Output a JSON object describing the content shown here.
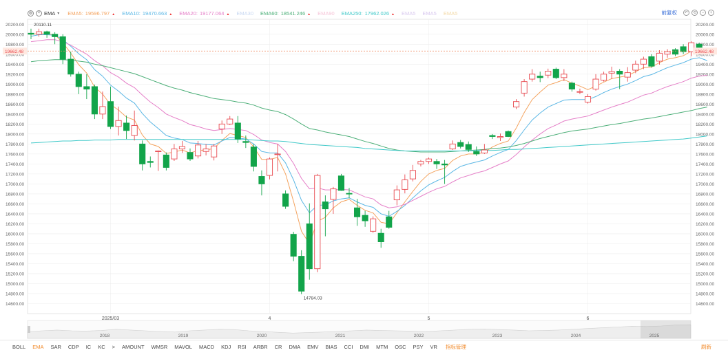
{
  "indicator": {
    "name": "EMA"
  },
  "legend": [
    {
      "label": "EMA5:",
      "value": "19596.797",
      "color": "#f4a460",
      "muted": false
    },
    {
      "label": "EMA10:",
      "value": "19470.663",
      "color": "#5bb7e5",
      "muted": false
    },
    {
      "label": "EMA20:",
      "value": "19177.064",
      "color": "#e57fc8",
      "muted": false
    },
    {
      "label": "EMA30",
      "value": "",
      "color": "#c9d8f2",
      "muted": true
    },
    {
      "label": "EMA60:",
      "value": "18541.246",
      "color": "#4caf78",
      "muted": false
    },
    {
      "label": "EMA90",
      "value": "",
      "color": "#f6c5d8",
      "muted": true
    },
    {
      "label": "EMA250:",
      "value": "17962.026",
      "color": "#40c9c9",
      "muted": false
    },
    {
      "label": "EMA5",
      "value": "",
      "color": "#d9c9ef",
      "muted": true
    },
    {
      "label": "EMA5",
      "value": "",
      "color": "#d9c9ef",
      "muted": true
    },
    {
      "label": "EMA5",
      "value": "",
      "color": "#f3d9a6",
      "muted": true
    }
  ],
  "toolbar": {
    "rights_label": "前复权"
  },
  "price_tag": "19662.48",
  "annotations": {
    "high": "20110.11",
    "low": "14784.03"
  },
  "colors": {
    "up": "#e8494f",
    "down": "#12a44a",
    "grid": "#eeeeee",
    "accent": "#f18a2a"
  },
  "tabs": [
    "BOLL",
    "EMA",
    "SAR",
    "CDP",
    "IC",
    "KC",
    ">",
    "AMOUNT",
    "WMSR",
    "MAVOL",
    "MACD",
    "KDJ",
    "RSI",
    "ARBR",
    "CR",
    "DMA",
    "EMV",
    "BIAS",
    "CCI",
    "DMI",
    "MTM",
    "OSC",
    "PSY",
    "VR"
  ],
  "active_tab": "EMA",
  "tabs_manage_label": "指标管理",
  "reset_label": "刷新",
  "chart_data": {
    "type": "candlestick",
    "title": "",
    "ylim": [
      14400,
      20300
    ],
    "y_ticks": [
      14600,
      14800,
      15000,
      15200,
      15400,
      15600,
      15800,
      16000,
      16200,
      16400,
      16600,
      16800,
      17000,
      17200,
      17400,
      17600,
      17800,
      18000,
      18200,
      18400,
      18600,
      18800,
      19000,
      19200,
      19400,
      19600,
      19800,
      20000,
      20200
    ],
    "x_labels": [
      {
        "index": 10,
        "label": "2025/03"
      },
      {
        "index": 30,
        "label": "4"
      },
      {
        "index": 50,
        "label": "5"
      },
      {
        "index": 70,
        "label": "6"
      }
    ],
    "overview_years": [
      "2018",
      "2019",
      "2020",
      "2021",
      "2022",
      "2023",
      "2024",
      "2025"
    ],
    "ohlc": [
      [
        20020,
        20000,
        19900,
        20110
      ],
      [
        20000,
        20050,
        19950,
        20110
      ],
      [
        20050,
        20000,
        19930,
        20070
      ],
      [
        20000,
        19950,
        19800,
        20040
      ],
      [
        19950,
        19500,
        19400,
        20000
      ],
      [
        19500,
        19200,
        19150,
        19650
      ],
      [
        19200,
        18950,
        18800,
        19250
      ],
      [
        18950,
        18900,
        18700,
        19200
      ],
      [
        18950,
        18400,
        18300,
        18990
      ],
      [
        18400,
        18550,
        18300,
        18850
      ],
      [
        18650,
        18150,
        18100,
        18950
      ],
      [
        18150,
        18270,
        17970,
        18550
      ],
      [
        18220,
        18070,
        17900,
        18370
      ],
      [
        17970,
        18170,
        17870,
        18470
      ],
      [
        17800,
        17400,
        17270,
        17870
      ],
      [
        17450,
        17430,
        17330,
        17550
      ],
      [
        17660,
        17660,
        17260,
        17670
      ],
      [
        17580,
        17330,
        17270,
        17630
      ],
      [
        17500,
        17700,
        17460,
        17800
      ],
      [
        17700,
        17750,
        17620,
        17860
      ],
      [
        17630,
        17500,
        17460,
        17710
      ],
      [
        17560,
        17780,
        17510,
        17860
      ],
      [
        17650,
        17700,
        17570,
        17800
      ],
      [
        17540,
        17760,
        17470,
        17800
      ],
      [
        18100,
        18200,
        18000,
        18270
      ],
      [
        18200,
        18300,
        18180,
        18360
      ],
      [
        18220,
        17900,
        17820,
        18360
      ],
      [
        17850,
        17830,
        17720,
        17970
      ],
      [
        17740,
        17350,
        17250,
        17800
      ],
      [
        17150,
        17000,
        16770,
        17270
      ],
      [
        17170,
        17500,
        17090,
        17530
      ],
      [
        17590,
        17600,
        17250,
        17800
      ],
      [
        16800,
        16550,
        16500,
        16870
      ],
      [
        15990,
        15550,
        15450,
        16040
      ],
      [
        15550,
        14850,
        14790,
        15670
      ],
      [
        16200,
        15300,
        15080,
        16610
      ],
      [
        15300,
        17170,
        15230,
        17200
      ],
      [
        16640,
        16500,
        15950,
        16770
      ],
      [
        16690,
        16900,
        16400,
        16940
      ],
      [
        17160,
        16870,
        16860,
        17200
      ],
      [
        16810,
        16800,
        16710,
        16920
      ],
      [
        16520,
        16340,
        16160,
        16700
      ],
      [
        16370,
        16260,
        16140,
        16460
      ],
      [
        16050,
        16300,
        16020,
        16350
      ],
      [
        16010,
        15840,
        15720,
        16100
      ],
      [
        16340,
        16130,
        16100,
        16460
      ],
      [
        16680,
        16880,
        16570,
        16970
      ],
      [
        16890,
        17080,
        16810,
        17190
      ],
      [
        17100,
        17270,
        17050,
        17380
      ],
      [
        17400,
        17450,
        17350,
        17480
      ],
      [
        17450,
        17500,
        17400,
        17530
      ],
      [
        17450,
        17400,
        17300,
        17500
      ],
      [
        17400,
        17380,
        17000,
        17480
      ],
      [
        17700,
        17800,
        17680,
        17870
      ],
      [
        17830,
        17750,
        17710,
        17880
      ],
      [
        17790,
        17690,
        17640,
        17850
      ],
      [
        17650,
        17600,
        17560,
        17750
      ],
      [
        17620,
        17680,
        17600,
        17800
      ],
      [
        17970,
        17950,
        17900,
        18000
      ],
      [
        17930,
        17950,
        17860,
        18010
      ],
      [
        18050,
        17950,
        17940,
        18070
      ],
      [
        18540,
        18650,
        18500,
        18700
      ],
      [
        18820,
        19050,
        18750,
        19100
      ],
      [
        19100,
        19200,
        19050,
        19300
      ],
      [
        19160,
        19130,
        19040,
        19250
      ],
      [
        19180,
        19260,
        19120,
        19310
      ],
      [
        19300,
        19130,
        19100,
        19330
      ],
      [
        19130,
        19200,
        19060,
        19300
      ],
      [
        19020,
        18900,
        18850,
        19050
      ],
      [
        18850,
        18850,
        18800,
        18910
      ],
      [
        18640,
        18750,
        18610,
        18800
      ],
      [
        18900,
        19100,
        18870,
        19200
      ],
      [
        19080,
        19200,
        19050,
        19250
      ],
      [
        19220,
        19250,
        19100,
        19350
      ],
      [
        19260,
        19200,
        18900,
        19300
      ],
      [
        19140,
        19230,
        19050,
        19340
      ],
      [
        19280,
        19400,
        19220,
        19470
      ],
      [
        19400,
        19500,
        19300,
        19550
      ],
      [
        19550,
        19360,
        19330,
        19600
      ],
      [
        19460,
        19620,
        19390,
        19680
      ],
      [
        19600,
        19650,
        19530,
        19700
      ],
      [
        19690,
        19600,
        19560,
        19720
      ],
      [
        19750,
        19650,
        19600,
        19800
      ],
      [
        19650,
        19830,
        19560,
        19860
      ],
      [
        19800,
        19700,
        19660,
        19830
      ],
      [
        19650,
        19662,
        19630,
        19700
      ]
    ],
    "series": [
      {
        "name": "EMA5",
        "color": "#f4a460",
        "values": [
          20000,
          20010,
          20005,
          19990,
          19830,
          19620,
          19390,
          19220,
          18940,
          18800,
          18590,
          18480,
          18340,
          18280,
          17980,
          17800,
          17750,
          17610,
          17640,
          17680,
          17620,
          17670,
          17680,
          17710,
          17870,
          18010,
          17970,
          17930,
          17740,
          17490,
          17490,
          17530,
          17200,
          16650,
          16050,
          15800,
          16250,
          16330,
          16520,
          16640,
          16690,
          16570,
          16470,
          16420,
          16230,
          16200,
          16420,
          16640,
          16850,
          17050,
          17200,
          17270,
          17310,
          17470,
          17560,
          17600,
          17600,
          17630,
          17740,
          17810,
          17860,
          18120,
          18430,
          18690,
          18840,
          18980,
          19030,
          19090,
          19020,
          18960,
          18890,
          18960,
          19040,
          19110,
          19140,
          19170,
          19250,
          19330,
          19340,
          19430,
          19500,
          19530,
          19570,
          19660,
          19670,
          19597
        ]
      },
      {
        "name": "EMA10",
        "color": "#5bb7e5",
        "values": [
          19960,
          19990,
          19990,
          19980,
          19890,
          19760,
          19610,
          19490,
          19290,
          19160,
          18980,
          18860,
          18720,
          18620,
          18410,
          18240,
          18110,
          17970,
          17920,
          17890,
          17820,
          17810,
          17790,
          17780,
          17860,
          17930,
          17920,
          17900,
          17800,
          17650,
          17620,
          17620,
          17420,
          17080,
          16670,
          16420,
          16570,
          16580,
          16660,
          16700,
          16720,
          16640,
          16570,
          16530,
          16400,
          16350,
          16450,
          16570,
          16720,
          16860,
          16980,
          17060,
          17130,
          17250,
          17350,
          17400,
          17440,
          17480,
          17560,
          17630,
          17690,
          17870,
          18080,
          18280,
          18420,
          18540,
          18610,
          18680,
          18690,
          18690,
          18690,
          18750,
          18830,
          18900,
          18950,
          19000,
          19070,
          19150,
          19190,
          19260,
          19330,
          19380,
          19430,
          19500,
          19530,
          19471
        ]
      },
      {
        "name": "EMA20",
        "color": "#e57fc8",
        "values": [
          19850,
          19870,
          19890,
          19890,
          19850,
          19780,
          19690,
          19600,
          19470,
          19370,
          19230,
          19140,
          19020,
          18930,
          18780,
          18640,
          18530,
          18400,
          18330,
          18270,
          18190,
          18150,
          18100,
          18070,
          18090,
          18110,
          18090,
          18070,
          17990,
          17880,
          17830,
          17800,
          17650,
          17410,
          17110,
          16900,
          16920,
          16880,
          16880,
          16890,
          16880,
          16810,
          16740,
          16700,
          16580,
          16520,
          16540,
          16590,
          16670,
          16750,
          16830,
          16900,
          16950,
          17040,
          17120,
          17170,
          17220,
          17260,
          17330,
          17400,
          17460,
          17590,
          17740,
          17880,
          18000,
          18110,
          18180,
          18260,
          18300,
          18330,
          18360,
          18420,
          18480,
          18540,
          18590,
          18640,
          18710,
          18780,
          18820,
          18890,
          18950,
          19000,
          19050,
          19120,
          19160,
          19177
        ]
      },
      {
        "name": "EMA60",
        "color": "#4caf78",
        "values": [
          19450,
          19470,
          19480,
          19490,
          19490,
          19480,
          19460,
          19440,
          19400,
          19370,
          19330,
          19290,
          19250,
          19210,
          19150,
          19090,
          19030,
          18970,
          18920,
          18880,
          18830,
          18790,
          18750,
          18710,
          18690,
          18670,
          18640,
          18620,
          18580,
          18520,
          18480,
          18450,
          18390,
          18300,
          18200,
          18110,
          18080,
          18040,
          18010,
          17980,
          17950,
          17900,
          17850,
          17810,
          17760,
          17710,
          17680,
          17660,
          17650,
          17640,
          17640,
          17640,
          17640,
          17650,
          17660,
          17670,
          17680,
          17690,
          17710,
          17720,
          17740,
          17770,
          17810,
          17860,
          17910,
          17950,
          17990,
          18030,
          18060,
          18080,
          18100,
          18130,
          18160,
          18190,
          18210,
          18240,
          18270,
          18300,
          18320,
          18350,
          18380,
          18410,
          18440,
          18470,
          18510,
          18541
        ]
      },
      {
        "name": "EMA250",
        "color": "#40c9c9",
        "values": [
          17820,
          17830,
          17840,
          17850,
          17860,
          17860,
          17870,
          17870,
          17880,
          17880,
          17880,
          17890,
          17890,
          17890,
          17890,
          17890,
          17890,
          17890,
          17890,
          17890,
          17890,
          17890,
          17890,
          17890,
          17890,
          17890,
          17890,
          17890,
          17880,
          17870,
          17860,
          17860,
          17850,
          17830,
          17810,
          17790,
          17780,
          17770,
          17760,
          17750,
          17740,
          17730,
          17710,
          17700,
          17690,
          17680,
          17670,
          17660,
          17660,
          17660,
          17660,
          17660,
          17660,
          17660,
          17660,
          17660,
          17670,
          17670,
          17670,
          17680,
          17690,
          17690,
          17700,
          17710,
          17720,
          17730,
          17740,
          17750,
          17760,
          17770,
          17780,
          17790,
          17800,
          17810,
          17820,
          17830,
          17840,
          17850,
          17860,
          17870,
          17880,
          17890,
          17900,
          17920,
          17940,
          17962
        ]
      }
    ]
  }
}
